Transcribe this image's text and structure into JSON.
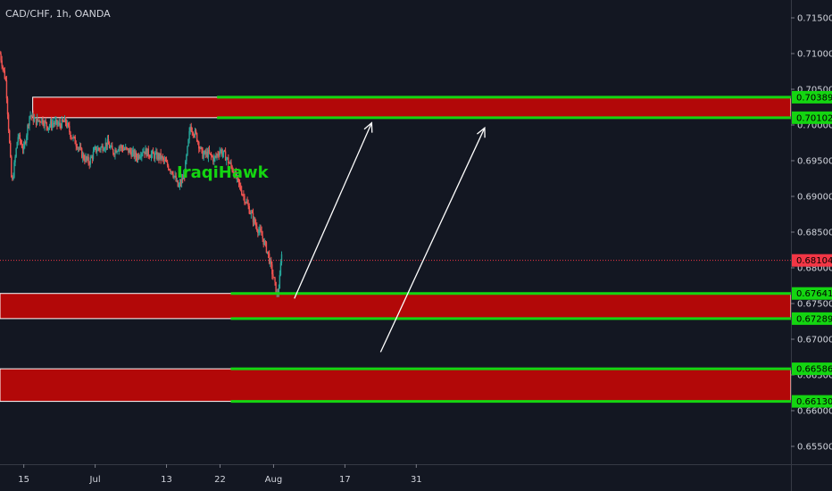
{
  "chart_data": {
    "type": "candlestick",
    "title": "CAD/CHF, 1h, OANDA",
    "annotation": "IraqiHawk",
    "ylim": [
      0.6525,
      0.7175
    ],
    "x_ticks": [
      {
        "label": "15",
        "t": 4
      },
      {
        "label": "Jul",
        "t": 16
      },
      {
        "label": "13",
        "t": 28
      },
      {
        "label": "22",
        "t": 37
      },
      {
        "label": "Aug",
        "t": 46
      },
      {
        "label": "17",
        "t": 58
      },
      {
        "label": "31",
        "t": 70
      }
    ],
    "x_range": [
      0,
      133
    ],
    "y_ticks": [
      "0.71500",
      "0.71000",
      "0.70500",
      "0.70000",
      "0.69500",
      "0.69000",
      "0.68500",
      "0.68000",
      "0.67500",
      "0.67000",
      "0.66500",
      "0.66000",
      "0.65500"
    ],
    "current_price": "0.68104",
    "zones": [
      {
        "top": 0.70389,
        "bottom": 0.70102,
        "top_label": "0.70389",
        "bottom_label": "0.70102",
        "t_start": 5.5
      },
      {
        "top": 0.67641,
        "bottom": 0.67289,
        "top_label": "0.67641",
        "bottom_label": "0.67289",
        "t_start": 0
      },
      {
        "top": 0.66586,
        "bottom": 0.6613,
        "top_label": "0.66586",
        "bottom_label": "0.66130",
        "t_start": 0
      }
    ],
    "line_start_t": [
      36.5,
      38.8,
      38.8
    ],
    "arrows": [
      {
        "from_t": 49.5,
        "from_y": 0.6757,
        "to_t": 62.5,
        "to_y": 0.7003
      },
      {
        "from_t": 64,
        "from_y": 0.6682,
        "to_t": 81.5,
        "to_y": 0.6996
      }
    ],
    "price_path": [
      [
        0,
        0.71
      ],
      [
        1,
        0.706
      ],
      [
        2,
        0.6915
      ],
      [
        3,
        0.6985
      ],
      [
        4,
        0.6965
      ],
      [
        5,
        0.7015
      ],
      [
        6,
        0.7005
      ],
      [
        7,
        0.7008
      ],
      [
        8,
        0.6998
      ],
      [
        9,
        0.7003
      ],
      [
        10,
        0.7
      ],
      [
        11,
        0.7005
      ],
      [
        12,
        0.6985
      ],
      [
        13,
        0.6972
      ],
      [
        14,
        0.6955
      ],
      [
        15,
        0.6948
      ],
      [
        16,
        0.6965
      ],
      [
        17,
        0.6968
      ],
      [
        18,
        0.6975
      ],
      [
        19,
        0.6962
      ],
      [
        20,
        0.697
      ],
      [
        21,
        0.6966
      ],
      [
        22,
        0.6962
      ],
      [
        23,
        0.6955
      ],
      [
        24,
        0.6965
      ],
      [
        25,
        0.696
      ],
      [
        26,
        0.6957
      ],
      [
        27,
        0.6955
      ],
      [
        28,
        0.6945
      ],
      [
        29,
        0.6935
      ],
      [
        30,
        0.6912
      ],
      [
        31,
        0.693
      ],
      [
        32,
        0.6998
      ],
      [
        33,
        0.6985
      ],
      [
        34,
        0.6958
      ],
      [
        35,
        0.696
      ],
      [
        36,
        0.6952
      ],
      [
        37,
        0.6965
      ],
      [
        38,
        0.6955
      ],
      [
        39,
        0.694
      ],
      [
        40,
        0.692
      ],
      [
        41,
        0.69
      ],
      [
        42,
        0.688
      ],
      [
        43,
        0.686
      ],
      [
        44,
        0.6845
      ],
      [
        45,
        0.6822
      ],
      [
        46,
        0.6785
      ],
      [
        46.6,
        0.676
      ],
      [
        47,
        0.678
      ],
      [
        47.4,
        0.6828
      ]
    ],
    "colors": {
      "background": "#131722",
      "up": "#26a69a",
      "down": "#ef5350",
      "zone_fill": "#b20808",
      "zone_border": "#ffffff",
      "level_line": "#14d511",
      "arrow": "#ffffff",
      "current_price_tag": "#f23645",
      "watermark": "#14d511"
    }
  }
}
